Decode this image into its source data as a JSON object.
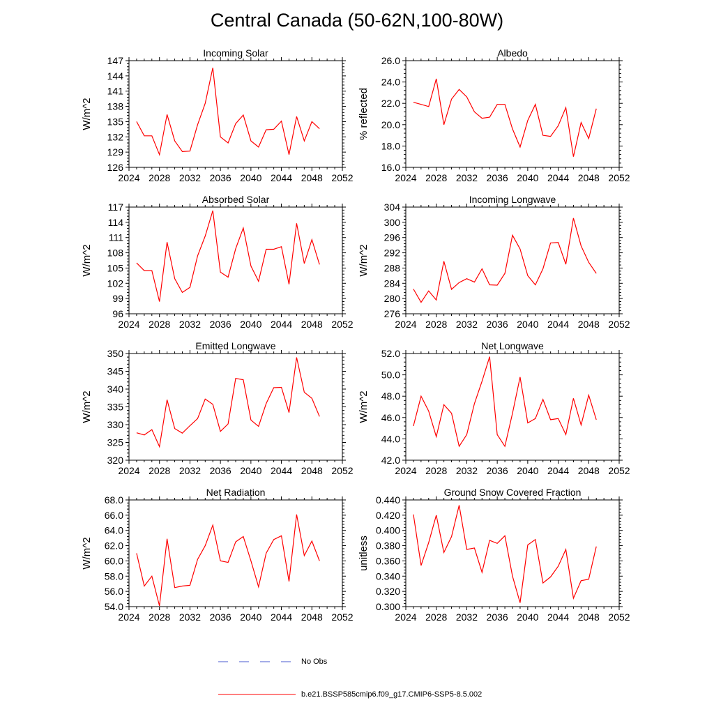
{
  "title": "Central Canada (50-62N,100-80W)",
  "legend": {
    "obs_label": "No Obs",
    "model_label": "b.e21.BSSP585cmip6.f09_g17.CMIP6-SSP5-8.5.002",
    "obs_color": "#4a5bd0",
    "model_color": "#ff0000"
  },
  "chart_data": [
    {
      "type": "line",
      "title": "Incoming Solar",
      "xlabel": "",
      "ylabel": "W/m^2",
      "xlim": [
        2024,
        2052
      ],
      "ylim": [
        126,
        147
      ],
      "xticks": [
        "2024",
        "2028",
        "2032",
        "2036",
        "2040",
        "2044",
        "2048",
        "2052"
      ],
      "yticks": [
        "126",
        "129",
        "132",
        "135",
        "138",
        "141",
        "144",
        "147"
      ],
      "x": [
        2025,
        2026,
        2027,
        2028,
        2029,
        2030,
        2031,
        2032,
        2033,
        2034,
        2035,
        2036,
        2037,
        2038,
        2039,
        2040,
        2041,
        2042,
        2043,
        2044,
        2045,
        2046,
        2047,
        2048,
        2049
      ],
      "values": [
        135.0,
        132.2,
        132.2,
        128.5,
        136.4,
        131.2,
        129.1,
        129.2,
        134.4,
        138.6,
        145.6,
        132.0,
        130.8,
        134.6,
        136.3,
        131.2,
        130.0,
        133.4,
        133.5,
        135.1,
        128.5,
        136.0,
        131.2,
        135.0,
        133.6
      ]
    },
    {
      "type": "line",
      "title": "Albedo",
      "xlabel": "",
      "ylabel": "% reflected",
      "xlim": [
        2024,
        2052
      ],
      "ylim": [
        16,
        26
      ],
      "xticks": [
        "2024",
        "2028",
        "2032",
        "2036",
        "2040",
        "2044",
        "2048",
        "2052"
      ],
      "yticks": [
        "16.0",
        "18.0",
        "20.0",
        "22.0",
        "24.0",
        "26.0"
      ],
      "x": [
        2025,
        2026,
        2027,
        2028,
        2029,
        2030,
        2031,
        2032,
        2033,
        2034,
        2035,
        2036,
        2037,
        2038,
        2039,
        2040,
        2041,
        2042,
        2043,
        2044,
        2045,
        2046,
        2047,
        2048,
        2049
      ],
      "values": [
        22.1,
        21.9,
        21.7,
        24.3,
        20.0,
        22.4,
        23.3,
        22.6,
        21.2,
        20.6,
        20.7,
        21.9,
        21.9,
        19.6,
        17.9,
        20.4,
        21.9,
        19.0,
        18.9,
        19.9,
        21.6,
        17.0,
        20.2,
        18.7,
        21.5
      ]
    },
    {
      "type": "line",
      "title": "Absorbed Solar",
      "xlabel": "",
      "ylabel": "W/m^2",
      "xlim": [
        2024,
        2052
      ],
      "ylim": [
        96,
        117
      ],
      "xticks": [
        "2024",
        "2028",
        "2032",
        "2036",
        "2040",
        "2044",
        "2048",
        "2052"
      ],
      "yticks": [
        "96",
        "99",
        "102",
        "105",
        "108",
        "111",
        "114",
        "117"
      ],
      "x": [
        2025,
        2026,
        2027,
        2028,
        2029,
        2030,
        2031,
        2032,
        2033,
        2034,
        2035,
        2036,
        2037,
        2038,
        2039,
        2040,
        2041,
        2042,
        2043,
        2044,
        2045,
        2046,
        2047,
        2048,
        2049
      ],
      "values": [
        106.0,
        104.5,
        104.5,
        98.4,
        110.1,
        102.9,
        100.2,
        101.2,
        107.4,
        111.3,
        116.3,
        104.2,
        103.2,
        108.8,
        112.9,
        105.4,
        102.4,
        108.7,
        108.7,
        109.2,
        101.8,
        113.8,
        105.9,
        110.6,
        105.7
      ]
    },
    {
      "type": "line",
      "title": "Incoming Longwave",
      "xlabel": "",
      "ylabel": "W/m^2",
      "xlim": [
        2024,
        2052
      ],
      "ylim": [
        276,
        304
      ],
      "xticks": [
        "2024",
        "2028",
        "2032",
        "2036",
        "2040",
        "2044",
        "2048",
        "2052"
      ],
      "yticks": [
        "276",
        "280",
        "284",
        "288",
        "292",
        "296",
        "300",
        "304"
      ],
      "x": [
        2025,
        2026,
        2027,
        2028,
        2029,
        2030,
        2031,
        2032,
        2033,
        2034,
        2035,
        2036,
        2037,
        2038,
        2039,
        2040,
        2041,
        2042,
        2043,
        2044,
        2045,
        2046,
        2047,
        2048,
        2049
      ],
      "values": [
        282.5,
        279.0,
        282.0,
        279.6,
        289.8,
        282.4,
        284.2,
        285.2,
        284.3,
        287.8,
        283.6,
        283.5,
        286.6,
        296.6,
        293.0,
        286.0,
        283.6,
        287.8,
        294.6,
        294.7,
        289.0,
        301.1,
        293.8,
        289.5,
        286.6
      ]
    },
    {
      "type": "line",
      "title": "Emitted Longwave",
      "xlabel": "",
      "ylabel": "W/m^2",
      "xlim": [
        2024,
        2052
      ],
      "ylim": [
        320,
        350
      ],
      "xticks": [
        "2024",
        "2028",
        "2032",
        "2036",
        "2040",
        "2044",
        "2048",
        "2052"
      ],
      "yticks": [
        "320",
        "325",
        "330",
        "335",
        "340",
        "345",
        "350"
      ],
      "x": [
        2025,
        2026,
        2027,
        2028,
        2029,
        2030,
        2031,
        2032,
        2033,
        2034,
        2035,
        2036,
        2037,
        2038,
        2039,
        2040,
        2041,
        2042,
        2043,
        2044,
        2045,
        2046,
        2047,
        2048,
        2049
      ],
      "values": [
        327.7,
        327.1,
        328.6,
        323.8,
        337.0,
        328.9,
        327.6,
        329.7,
        331.7,
        337.2,
        335.7,
        328.1,
        330.2,
        343.0,
        342.6,
        331.3,
        329.5,
        335.9,
        340.4,
        340.5,
        333.4,
        348.9,
        339.1,
        337.4,
        332.3
      ]
    },
    {
      "type": "line",
      "title": "Net Longwave",
      "xlabel": "",
      "ylabel": "W/m^2",
      "xlim": [
        2024,
        2052
      ],
      "ylim": [
        42,
        52
      ],
      "xticks": [
        "2024",
        "2028",
        "2032",
        "2036",
        "2040",
        "2044",
        "2048",
        "2052"
      ],
      "yticks": [
        "42.0",
        "44.0",
        "46.0",
        "48.0",
        "50.0",
        "52.0"
      ],
      "x": [
        2025,
        2026,
        2027,
        2028,
        2029,
        2030,
        2031,
        2032,
        2033,
        2034,
        2035,
        2036,
        2037,
        2038,
        2039,
        2040,
        2041,
        2042,
        2043,
        2044,
        2045,
        2046,
        2047,
        2048,
        2049
      ],
      "values": [
        45.2,
        48.0,
        46.6,
        44.2,
        47.2,
        46.4,
        43.3,
        44.4,
        47.3,
        49.4,
        51.7,
        44.4,
        43.3,
        46.4,
        49.8,
        45.5,
        45.9,
        47.7,
        45.8,
        45.9,
        44.4,
        47.8,
        45.3,
        48.1,
        45.8
      ]
    },
    {
      "type": "line",
      "title": "Net Radiation",
      "xlabel": "",
      "ylabel": "W/m^2",
      "xlim": [
        2024,
        2052
      ],
      "ylim": [
        54,
        68
      ],
      "xticks": [
        "2024",
        "2028",
        "2032",
        "2036",
        "2040",
        "2044",
        "2048",
        "2052"
      ],
      "yticks": [
        "54.0",
        "56.0",
        "58.0",
        "60.0",
        "62.0",
        "64.0",
        "66.0",
        "68.0"
      ],
      "x": [
        2025,
        2026,
        2027,
        2028,
        2029,
        2030,
        2031,
        2032,
        2033,
        2034,
        2035,
        2036,
        2037,
        2038,
        2039,
        2040,
        2041,
        2042,
        2043,
        2044,
        2045,
        2046,
        2047,
        2048,
        2049
      ],
      "values": [
        61.0,
        56.7,
        58.0,
        54.1,
        62.9,
        56.5,
        56.7,
        56.8,
        60.2,
        62.0,
        64.7,
        60.0,
        59.8,
        62.5,
        63.2,
        60.0,
        56.6,
        61.0,
        62.8,
        63.3,
        57.3,
        66.1,
        60.7,
        62.6,
        60.0
      ]
    },
    {
      "type": "line",
      "title": "Ground Snow Covered Fraction",
      "xlabel": "",
      "ylabel": "unitless",
      "xlim": [
        2024,
        2052
      ],
      "ylim": [
        0.3,
        0.44
      ],
      "xticks": [
        "2024",
        "2028",
        "2032",
        "2036",
        "2040",
        "2044",
        "2048",
        "2052"
      ],
      "yticks": [
        "0.300",
        "0.320",
        "0.340",
        "0.360",
        "0.380",
        "0.400",
        "0.420",
        "0.440"
      ],
      "x": [
        2025,
        2026,
        2027,
        2028,
        2029,
        2030,
        2031,
        2032,
        2033,
        2034,
        2035,
        2036,
        2037,
        2038,
        2039,
        2040,
        2041,
        2042,
        2043,
        2044,
        2045,
        2046,
        2047,
        2048,
        2049
      ],
      "values": [
        0.421,
        0.354,
        0.384,
        0.42,
        0.371,
        0.392,
        0.433,
        0.375,
        0.377,
        0.345,
        0.387,
        0.383,
        0.393,
        0.34,
        0.305,
        0.381,
        0.388,
        0.331,
        0.339,
        0.353,
        0.375,
        0.311,
        0.334,
        0.336,
        0.379
      ]
    }
  ]
}
